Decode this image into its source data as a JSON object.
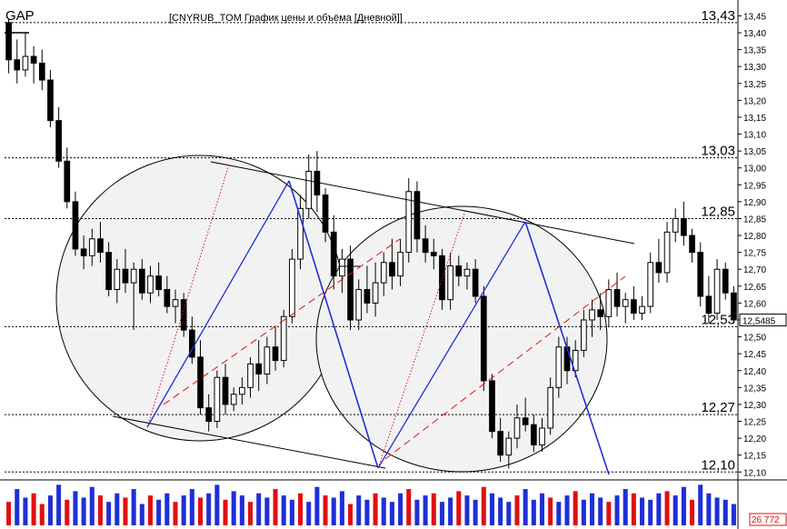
{
  "header": {
    "symbol": "GAP",
    "caption": "[CNYRUB_TOM График цены и объёма [Дневной]]"
  },
  "price_axis": {
    "ticks": [
      "13,45",
      "13,40",
      "13,35",
      "13,30",
      "13,25",
      "13,20",
      "13,15",
      "13,10",
      "13,05",
      "13,00",
      "12,95",
      "12,90",
      "12,85",
      "12,80",
      "12,75",
      "12,70",
      "12,65",
      "12,60",
      "12,55",
      "12,50",
      "12,45",
      "12,40",
      "12,35",
      "12,30",
      "12,25",
      "12,20",
      "12,15",
      "12,10"
    ],
    "current_price_label": "12,5485",
    "volume_label": "26 772"
  },
  "levels": [
    {
      "value": 13.43,
      "label": "13,43"
    },
    {
      "value": 13.03,
      "label": "13,03"
    },
    {
      "value": 12.85,
      "label": "12,85"
    },
    {
      "value": 12.53,
      "label": "12,53"
    },
    {
      "value": 12.27,
      "label": "12,27"
    },
    {
      "value": 12.1,
      "label": "12,10"
    }
  ],
  "colors": {
    "up": "#ffffff",
    "down": "#000000",
    "blue_line": "#1f2fd6",
    "red_line": "#e01010",
    "volume_up": "#1f2fd6",
    "volume_down": "#e01010",
    "grid": "#000000",
    "circle_fill": "#f2f2f2"
  },
  "chart_data": {
    "type": "candlestick",
    "title": "[CNYRUB_TOM График цены и объёма [Дневной]]",
    "ylim": [
      12.09,
      13.47
    ],
    "candles": [
      [
        13.43,
        13.44,
        13.28,
        13.32
      ],
      [
        13.32,
        13.38,
        13.25,
        13.29
      ],
      [
        13.29,
        13.4,
        13.27,
        13.33
      ],
      [
        13.33,
        13.36,
        13.25,
        13.31
      ],
      [
        13.31,
        13.35,
        13.23,
        13.26
      ],
      [
        13.26,
        13.29,
        13.12,
        13.14
      ],
      [
        13.14,
        13.18,
        13.0,
        13.02
      ],
      [
        13.02,
        13.06,
        12.88,
        12.9
      ],
      [
        12.9,
        12.93,
        12.74,
        12.76
      ],
      [
        12.76,
        12.8,
        12.7,
        12.74
      ],
      [
        12.74,
        12.82,
        12.71,
        12.79
      ],
      [
        12.79,
        12.84,
        12.72,
        12.75
      ],
      [
        12.75,
        12.78,
        12.62,
        12.64
      ],
      [
        12.64,
        12.73,
        12.6,
        12.7
      ],
      [
        12.7,
        12.76,
        12.63,
        12.66
      ],
      [
        12.66,
        12.72,
        12.52,
        12.7
      ],
      [
        12.7,
        12.73,
        12.61,
        12.63
      ],
      [
        12.63,
        12.71,
        12.6,
        12.68
      ],
      [
        12.68,
        12.72,
        12.62,
        12.64
      ],
      [
        12.64,
        12.68,
        12.57,
        12.59
      ],
      [
        12.59,
        12.64,
        12.54,
        12.61
      ],
      [
        12.61,
        12.63,
        12.5,
        12.52
      ],
      [
        12.52,
        12.56,
        12.42,
        12.44
      ],
      [
        12.44,
        12.49,
        12.27,
        12.29
      ],
      [
        12.29,
        12.33,
        12.22,
        12.25
      ],
      [
        12.25,
        12.4,
        12.23,
        12.38
      ],
      [
        12.38,
        12.42,
        12.27,
        12.3
      ],
      [
        12.3,
        12.35,
        12.28,
        12.33
      ],
      [
        12.33,
        12.38,
        12.3,
        12.35
      ],
      [
        12.35,
        12.44,
        12.32,
        12.42
      ],
      [
        12.42,
        12.49,
        12.34,
        12.39
      ],
      [
        12.39,
        12.5,
        12.36,
        12.47
      ],
      [
        12.47,
        12.53,
        12.4,
        12.43
      ],
      [
        12.43,
        12.58,
        12.41,
        12.56
      ],
      [
        12.56,
        12.76,
        12.54,
        12.73
      ],
      [
        12.73,
        12.92,
        12.7,
        12.88
      ],
      [
        12.88,
        13.04,
        12.85,
        12.99
      ],
      [
        12.99,
        13.05,
        12.87,
        12.92
      ],
      [
        12.92,
        12.94,
        12.78,
        12.81
      ],
      [
        12.81,
        12.86,
        12.64,
        12.68
      ],
      [
        12.68,
        12.76,
        12.63,
        12.73
      ],
      [
        12.73,
        12.77,
        12.52,
        12.55
      ],
      [
        12.55,
        12.67,
        12.52,
        12.64
      ],
      [
        12.64,
        12.71,
        12.57,
        12.6
      ],
      [
        12.6,
        12.72,
        12.56,
        12.66
      ],
      [
        12.66,
        12.75,
        12.62,
        12.72
      ],
      [
        12.72,
        12.79,
        12.64,
        12.68
      ],
      [
        12.68,
        12.79,
        12.65,
        12.75
      ],
      [
        12.75,
        12.97,
        12.72,
        12.93
      ],
      [
        12.93,
        12.96,
        12.75,
        12.79
      ],
      [
        12.79,
        12.83,
        12.72,
        12.75
      ],
      [
        12.75,
        12.79,
        12.7,
        12.74
      ],
      [
        12.74,
        12.76,
        12.58,
        12.61
      ],
      [
        12.61,
        12.75,
        12.58,
        12.71
      ],
      [
        12.71,
        12.74,
        12.65,
        12.68
      ],
      [
        12.68,
        12.72,
        12.64,
        12.7
      ],
      [
        12.7,
        12.73,
        12.6,
        12.62
      ],
      [
        12.62,
        12.65,
        12.34,
        12.37
      ],
      [
        12.37,
        12.39,
        12.2,
        12.22
      ],
      [
        12.22,
        12.26,
        12.13,
        12.15
      ],
      [
        12.15,
        12.22,
        12.11,
        12.2
      ],
      [
        12.2,
        12.3,
        12.17,
        12.26
      ],
      [
        12.26,
        12.32,
        12.22,
        12.24
      ],
      [
        12.24,
        12.27,
        12.16,
        12.18
      ],
      [
        12.18,
        12.26,
        12.16,
        12.23
      ],
      [
        12.23,
        12.38,
        12.21,
        12.35
      ],
      [
        12.35,
        12.5,
        12.32,
        12.47
      ],
      [
        12.47,
        12.5,
        12.36,
        12.4
      ],
      [
        12.4,
        12.49,
        12.38,
        12.46
      ],
      [
        12.46,
        12.58,
        12.44,
        12.55
      ],
      [
        12.55,
        12.61,
        12.5,
        12.58
      ],
      [
        12.58,
        12.63,
        12.52,
        12.56
      ],
      [
        12.56,
        12.67,
        12.53,
        12.64
      ],
      [
        12.64,
        12.69,
        12.56,
        12.59
      ],
      [
        12.59,
        12.63,
        12.54,
        12.61
      ],
      [
        12.61,
        12.65,
        12.55,
        12.57
      ],
      [
        12.57,
        12.62,
        12.55,
        12.59
      ],
      [
        12.59,
        12.75,
        12.57,
        12.72
      ],
      [
        12.72,
        12.79,
        12.66,
        12.69
      ],
      [
        12.69,
        12.84,
        12.66,
        12.81
      ],
      [
        12.81,
        12.88,
        12.78,
        12.85
      ],
      [
        12.85,
        12.9,
        12.77,
        12.8
      ],
      [
        12.8,
        12.82,
        12.72,
        12.75
      ],
      [
        12.75,
        12.78,
        12.59,
        12.62
      ],
      [
        12.62,
        12.68,
        12.54,
        12.57
      ],
      [
        12.57,
        12.73,
        12.55,
        12.7
      ],
      [
        12.7,
        12.72,
        12.61,
        12.63
      ],
      [
        12.63,
        12.65,
        12.54,
        12.55
      ]
    ],
    "volume": [
      [
        22,
        -1
      ],
      [
        34,
        1
      ],
      [
        26,
        1
      ],
      [
        30,
        -1
      ],
      [
        20,
        -1
      ],
      [
        28,
        1
      ],
      [
        38,
        1
      ],
      [
        24,
        -1
      ],
      [
        32,
        1
      ],
      [
        26,
        1
      ],
      [
        36,
        1
      ],
      [
        28,
        -1
      ],
      [
        22,
        1
      ],
      [
        30,
        1
      ],
      [
        26,
        -1
      ],
      [
        34,
        1
      ],
      [
        20,
        1
      ],
      [
        28,
        -1
      ],
      [
        24,
        1
      ],
      [
        30,
        1
      ],
      [
        22,
        -1
      ],
      [
        28,
        1
      ],
      [
        34,
        1
      ],
      [
        26,
        -1
      ],
      [
        30,
        1
      ],
      [
        38,
        1
      ],
      [
        24,
        -1
      ],
      [
        32,
        1
      ],
      [
        28,
        1
      ],
      [
        22,
        -1
      ],
      [
        30,
        1
      ],
      [
        26,
        1
      ],
      [
        34,
        -1
      ],
      [
        28,
        1
      ],
      [
        24,
        1
      ],
      [
        30,
        -1
      ],
      [
        22,
        1
      ],
      [
        36,
        1
      ],
      [
        28,
        -1
      ],
      [
        26,
        1
      ],
      [
        32,
        1
      ],
      [
        20,
        -1
      ],
      [
        28,
        1
      ],
      [
        24,
        1
      ],
      [
        30,
        -1
      ],
      [
        26,
        1
      ],
      [
        22,
        1
      ],
      [
        30,
        1
      ],
      [
        34,
        -1
      ],
      [
        24,
        1
      ],
      [
        28,
        1
      ],
      [
        30,
        -1
      ],
      [
        22,
        1
      ],
      [
        26,
        1
      ],
      [
        32,
        -1
      ],
      [
        28,
        1
      ],
      [
        24,
        1
      ],
      [
        36,
        -1
      ],
      [
        30,
        1
      ],
      [
        26,
        1
      ],
      [
        22,
        1
      ],
      [
        28,
        -1
      ],
      [
        34,
        1
      ],
      [
        24,
        1
      ],
      [
        30,
        1
      ],
      [
        26,
        -1
      ],
      [
        22,
        1
      ],
      [
        28,
        1
      ],
      [
        32,
        -1
      ],
      [
        24,
        1
      ],
      [
        30,
        1
      ],
      [
        26,
        1
      ],
      [
        22,
        -1
      ],
      [
        28,
        1
      ],
      [
        34,
        1
      ],
      [
        30,
        -1
      ],
      [
        26,
        1
      ],
      [
        24,
        1
      ],
      [
        30,
        1
      ],
      [
        32,
        -1
      ],
      [
        28,
        1
      ],
      [
        36,
        1
      ],
      [
        24,
        -1
      ],
      [
        38,
        1
      ],
      [
        30,
        1
      ],
      [
        26,
        1
      ],
      [
        24,
        1
      ],
      [
        20,
        1
      ]
    ]
  }
}
